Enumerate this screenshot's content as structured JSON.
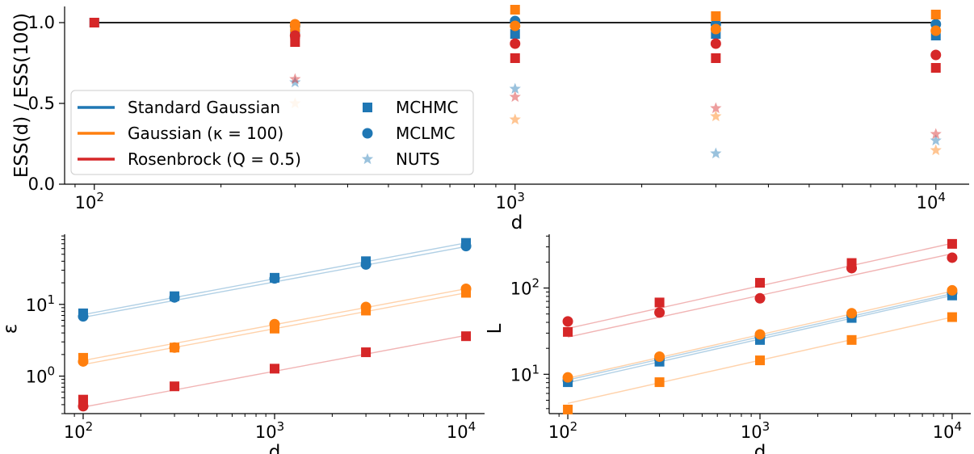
{
  "colors": {
    "standard_gaussian": "#1f77b4",
    "gaussian_kappa": "#ff7f0e",
    "rosenbrock": "#d62728"
  },
  "legend": {
    "lines": [
      {
        "label": "Standard Gaussian",
        "color": "#1f77b4"
      },
      {
        "label": "Gaussian (κ = 100)",
        "color": "#ff7f0e"
      },
      {
        "label": "Rosenbrock (Q = 0.5)",
        "color": "#d62728"
      }
    ],
    "markers": [
      {
        "label": "MCHMC",
        "marker": "square"
      },
      {
        "label": "MCLMC",
        "marker": "circle"
      },
      {
        "label": "NUTS",
        "marker": "star"
      }
    ]
  },
  "chart_data": [
    {
      "type": "scatter",
      "panel": "top",
      "xscale": "log",
      "xlabel": "d",
      "ylabel": "ESS(d) / ESS(100)",
      "xlim": [
        85,
        12000
      ],
      "ylim": [
        0,
        1.1
      ],
      "xticks": [
        {
          "value": 100,
          "base": "10",
          "exp": "2"
        },
        {
          "value": 1000,
          "base": "10",
          "exp": "3"
        },
        {
          "value": 10000,
          "base": "10",
          "exp": "4"
        }
      ],
      "yticks": [
        {
          "value": 0,
          "label": "0.0"
        },
        {
          "value": 0.5,
          "label": "0.5"
        },
        {
          "value": 1.0,
          "label": "1.0"
        }
      ],
      "reference_line": {
        "y": 1.0,
        "x": [
          100,
          10000
        ]
      },
      "legend_position": "lower-left",
      "series": [
        {
          "name": "Standard Gaussian",
          "method": "MCHMC",
          "marker": "square",
          "color": "#1f77b4",
          "alpha": 1,
          "x": [
            100,
            300,
            1000,
            3000,
            10000
          ],
          "y": [
            1.0,
            0.93,
            0.93,
            0.93,
            0.92
          ]
        },
        {
          "name": "Standard Gaussian",
          "method": "MCLMC",
          "marker": "circle",
          "color": "#1f77b4",
          "alpha": 1,
          "x": [
            300,
            1000,
            3000,
            10000
          ],
          "y": [
            0.98,
            1.01,
            0.99,
            0.99
          ]
        },
        {
          "name": "Standard Gaussian",
          "method": "NUTS",
          "marker": "star",
          "color": "#1f77b4",
          "alpha": 0.45,
          "x": [
            300,
            1000,
            3000,
            10000
          ],
          "y": [
            0.63,
            0.59,
            0.19,
            0.27
          ]
        },
        {
          "name": "Gaussian (κ = 100)",
          "method": "MCHMC",
          "marker": "square",
          "color": "#ff7f0e",
          "alpha": 1,
          "x": [
            300,
            1000,
            3000,
            10000
          ],
          "y": [
            0.97,
            1.08,
            1.04,
            1.05
          ]
        },
        {
          "name": "Gaussian (κ = 100)",
          "method": "MCLMC",
          "marker": "circle",
          "color": "#ff7f0e",
          "alpha": 1,
          "x": [
            300,
            1000,
            3000,
            10000
          ],
          "y": [
            0.99,
            0.98,
            0.96,
            0.95
          ]
        },
        {
          "name": "Gaussian (κ = 100)",
          "method": "NUTS",
          "marker": "star",
          "color": "#ff7f0e",
          "alpha": 0.45,
          "x": [
            300,
            1000,
            3000,
            10000
          ],
          "y": [
            0.5,
            0.4,
            0.42,
            0.21
          ]
        },
        {
          "name": "Rosenbrock (Q = 0.5)",
          "method": "MCHMC",
          "marker": "square",
          "color": "#d62728",
          "alpha": 1,
          "x": [
            100,
            300,
            1000,
            3000,
            10000
          ],
          "y": [
            1.0,
            0.88,
            0.78,
            0.78,
            0.72
          ]
        },
        {
          "name": "Rosenbrock (Q = 0.5)",
          "method": "MCLMC",
          "marker": "circle",
          "color": "#d62728",
          "alpha": 1,
          "x": [
            300,
            1000,
            3000,
            10000
          ],
          "y": [
            0.92,
            0.87,
            0.87,
            0.8
          ]
        },
        {
          "name": "Rosenbrock (Q = 0.5)",
          "method": "NUTS",
          "marker": "star",
          "color": "#d62728",
          "alpha": 0.45,
          "x": [
            300,
            1000,
            3000,
            10000
          ],
          "y": [
            0.65,
            0.54,
            0.47,
            0.31
          ]
        }
      ]
    },
    {
      "type": "scatter",
      "panel": "bottom-left",
      "xscale": "log",
      "yscale": "log",
      "xlabel": "d",
      "ylabel": "ε",
      "xlim": [
        80,
        12500
      ],
      "ylim": [
        0.3,
        95
      ],
      "xticks": [
        {
          "value": 100,
          "base": "10",
          "exp": "2"
        },
        {
          "value": 1000,
          "base": "10",
          "exp": "3"
        },
        {
          "value": 10000,
          "base": "10",
          "exp": "4"
        }
      ],
      "yticks": [
        {
          "value": 1,
          "base": "10",
          "exp": "0"
        },
        {
          "value": 10,
          "base": "10",
          "exp": "1"
        }
      ],
      "series": [
        {
          "name": "Standard Gaussian",
          "method": "MCHMC",
          "marker": "square",
          "color": "#1f77b4",
          "x": [
            100,
            300,
            1000,
            3000,
            10000
          ],
          "y": [
            7.5,
            13,
            23.5,
            40,
            72
          ]
        },
        {
          "name": "Standard Gaussian",
          "method": "MCLMC",
          "marker": "circle",
          "color": "#1f77b4",
          "x": [
            100,
            300,
            1000,
            3000,
            10000
          ],
          "y": [
            6.8,
            12.5,
            23,
            36,
            65
          ]
        },
        {
          "name": "Gaussian (κ = 100)",
          "method": "MCHMC",
          "marker": "square",
          "color": "#ff7f0e",
          "x": [
            100,
            300,
            1000,
            3000,
            10000
          ],
          "y": [
            1.8,
            2.5,
            4.6,
            8.2,
            14.5
          ]
        },
        {
          "name": "Gaussian (κ = 100)",
          "method": "MCLMC",
          "marker": "circle",
          "color": "#ff7f0e",
          "x": [
            100,
            300,
            1000,
            3000,
            10000
          ],
          "y": [
            1.6,
            2.5,
            5.3,
            9.2,
            16.5
          ]
        },
        {
          "name": "Rosenbrock (Q = 0.5)",
          "method": "MCHMC",
          "marker": "square",
          "color": "#d62728",
          "x": [
            100,
            300,
            1000,
            3000,
            10000
          ],
          "y": [
            0.47,
            0.72,
            1.27,
            2.15,
            3.6
          ]
        },
        {
          "name": "Rosenbrock (Q = 0.5)",
          "method": "MCLMC",
          "marker": "circle",
          "color": "#d62728",
          "x": [
            100
          ],
          "y": [
            0.38
          ]
        }
      ],
      "fit_lines": [
        {
          "color": "#1f77b4",
          "x": [
            100,
            10000
          ],
          "y": [
            7.2,
            72
          ]
        },
        {
          "color": "#1f77b4",
          "x": [
            100,
            10000
          ],
          "y": [
            6.6,
            64
          ]
        },
        {
          "color": "#ff7f0e",
          "x": [
            100,
            10000
          ],
          "y": [
            1.65,
            16.5
          ]
        },
        {
          "color": "#ff7f0e",
          "x": [
            100,
            10000
          ],
          "y": [
            1.45,
            14.5
          ]
        },
        {
          "color": "#d62728",
          "x": [
            100,
            10000
          ],
          "y": [
            0.37,
            3.7
          ]
        }
      ]
    },
    {
      "type": "scatter",
      "panel": "bottom-right",
      "xscale": "log",
      "yscale": "log",
      "xlabel": "d",
      "ylabel": "L",
      "xlim": [
        80,
        12500
      ],
      "ylim": [
        3.5,
        420
      ],
      "xticks": [
        {
          "value": 100,
          "base": "10",
          "exp": "2"
        },
        {
          "value": 1000,
          "base": "10",
          "exp": "3"
        },
        {
          "value": 10000,
          "base": "10",
          "exp": "4"
        }
      ],
      "yticks": [
        {
          "value": 10,
          "base": "10",
          "exp": "1"
        },
        {
          "value": 100,
          "base": "10",
          "exp": "2"
        }
      ],
      "series": [
        {
          "name": "Standard Gaussian",
          "method": "MCHMC",
          "marker": "square",
          "color": "#1f77b4",
          "x": [
            100,
            300,
            1000,
            3000,
            10000
          ],
          "y": [
            8.1,
            14,
            25,
            45,
            82
          ]
        },
        {
          "name": "Standard Gaussian",
          "method": "MCLMC",
          "marker": "circle",
          "color": "#1f77b4",
          "x": [
            100,
            300,
            1000,
            3000,
            10000
          ],
          "y": [
            8.5,
            15,
            27,
            48,
            88
          ]
        },
        {
          "name": "Gaussian (κ = 100)",
          "method": "MCHMC",
          "marker": "square",
          "color": "#ff7f0e",
          "x": [
            100,
            300,
            1000,
            3000,
            10000
          ],
          "y": [
            3.9,
            8.1,
            14.5,
            25,
            46
          ]
        },
        {
          "name": "Gaussian (κ = 100)",
          "method": "MCLMC",
          "marker": "circle",
          "color": "#ff7f0e",
          "x": [
            100,
            300,
            1000,
            3000,
            10000
          ],
          "y": [
            9.2,
            16,
            29,
            51,
            94
          ]
        },
        {
          "name": "Rosenbrock (Q = 0.5)",
          "method": "MCHMC",
          "marker": "square",
          "color": "#d62728",
          "x": [
            100,
            300,
            1000,
            3000,
            10000
          ],
          "y": [
            31,
            68,
            115,
            195,
            325
          ]
        },
        {
          "name": "Rosenbrock (Q = 0.5)",
          "method": "MCLMC",
          "marker": "circle",
          "color": "#d62728",
          "x": [
            100,
            300,
            1000,
            3000,
            10000
          ],
          "y": [
            41,
            52,
            76,
            170,
            225
          ]
        }
      ],
      "fit_lines": [
        {
          "color": "#1f77b4",
          "x": [
            100,
            10000
          ],
          "y": [
            8.0,
            82
          ]
        },
        {
          "color": "#1f77b4",
          "x": [
            100,
            10000
          ],
          "y": [
            8.6,
            86
          ]
        },
        {
          "color": "#ff7f0e",
          "x": [
            100,
            10000
          ],
          "y": [
            9.0,
            92
          ]
        },
        {
          "color": "#ff7f0e",
          "x": [
            100,
            10000
          ],
          "y": [
            4.6,
            46
          ]
        },
        {
          "color": "#d62728",
          "x": [
            100,
            10000
          ],
          "y": [
            34,
            330
          ]
        },
        {
          "color": "#d62728",
          "x": [
            100,
            10000
          ],
          "y": [
            27,
            250
          ]
        }
      ]
    }
  ]
}
